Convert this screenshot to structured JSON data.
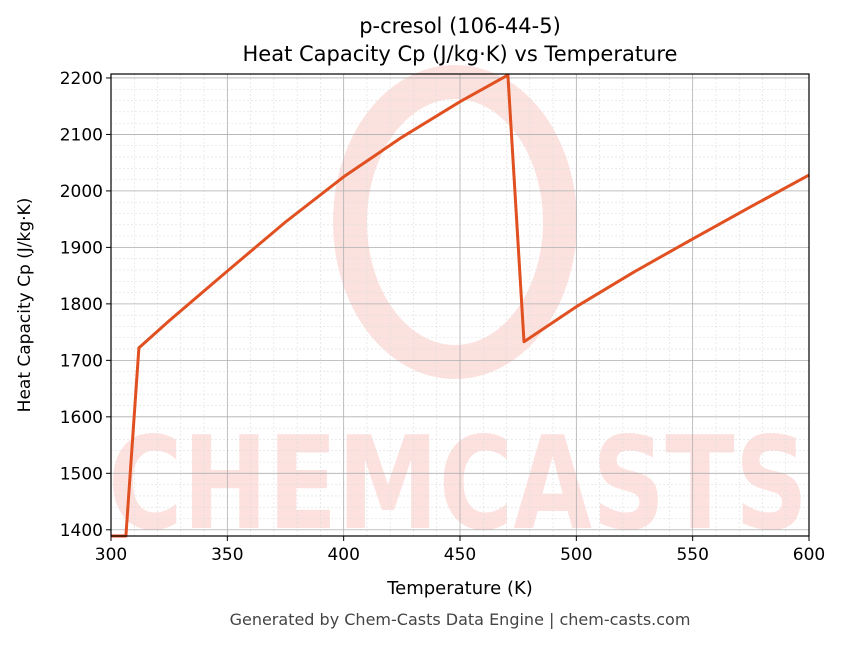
{
  "chart_data": {
    "type": "line",
    "title": "p-cresol (106-44-5)",
    "subtitle": "Heat Capacity Cp (J/kg·K) vs Temperature",
    "xlabel": "Temperature (K)",
    "ylabel": "Heat Capacity Cp (J/kg·K)",
    "xlim": [
      300,
      600
    ],
    "ylim": [
      1389,
      2207
    ],
    "xticks": [
      300,
      350,
      400,
      450,
      500,
      550,
      600
    ],
    "yticks": [
      1400,
      1500,
      1600,
      1700,
      1800,
      1900,
      2000,
      2100,
      2200
    ],
    "grid": true,
    "line_color": "#e05020",
    "series": [
      {
        "name": "Cp",
        "x": [
          300,
          306.4,
          312,
          325,
          350,
          375,
          400,
          425,
          450,
          470.6,
          477.5,
          500,
          525,
          550,
          575,
          600
        ],
        "y": [
          1389,
          1389,
          1722,
          1770,
          1858,
          1945,
          2025,
          2095,
          2158,
          2205,
          1733,
          1795,
          1857,
          1915,
          1972,
          2028
        ]
      }
    ],
    "watermark": "CHEMCASTS",
    "footer": "Generated by Chem-Casts Data Engine | chem-casts.com"
  }
}
